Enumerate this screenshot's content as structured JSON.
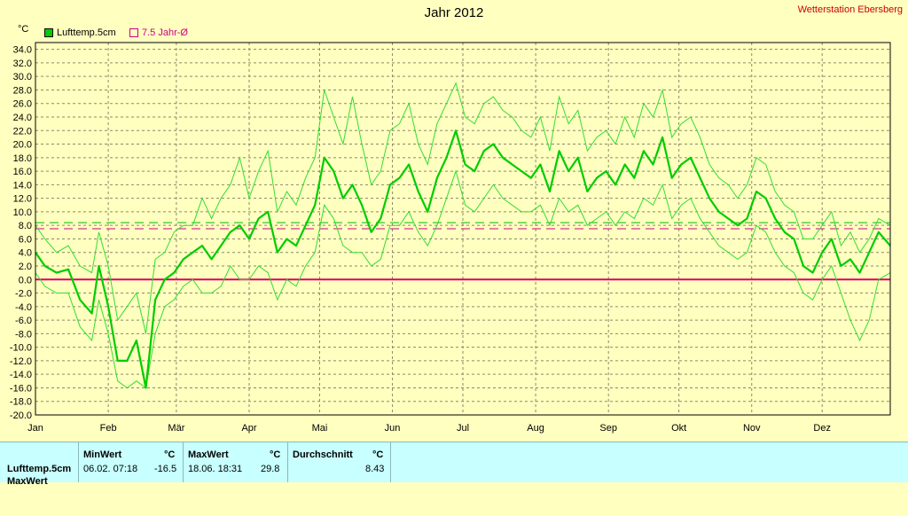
{
  "title": "Jahr 2012",
  "station": "Wetterstation Ebersberg",
  "unit": "°C",
  "legend": [
    {
      "label": "Lufttemp.5cm",
      "color": "#00cc00"
    },
    {
      "label": "7.5 Jahr-Ø",
      "color": "#cc0088"
    }
  ],
  "stats": {
    "row_label": "Lufttemp.5cm",
    "row_label_2": "MaxWert",
    "min_header": "MinWert",
    "min_unit": "°C",
    "min_date": "06.02. 07:18",
    "min_value": "-16.5",
    "max_header": "MaxWert",
    "max_unit": "°C",
    "max_date": "18.06. 18:31",
    "max_value": "29.8",
    "avg_header": "Durchschnitt",
    "avg_unit": "°C",
    "avg_value": "8.43"
  },
  "colors": {
    "background": "#ffffc0",
    "series": "#00cc00",
    "band": "#33dd33",
    "zero_line": "#dd0066",
    "avg_line": "#cc0088",
    "green_ref": "#00bb00"
  },
  "chart_data": {
    "type": "line",
    "title": "Jahr 2012",
    "ylabel": "°C",
    "ylim": [
      -20,
      35
    ],
    "x_domain": [
      1,
      365
    ],
    "grid": true,
    "legend_position": "top-left",
    "months": [
      {
        "label": "Jan",
        "day": 1
      },
      {
        "label": "Feb",
        "day": 32
      },
      {
        "label": "Mär",
        "day": 61
      },
      {
        "label": "Apr",
        "day": 92
      },
      {
        "label": "Mai",
        "day": 122
      },
      {
        "label": "Jun",
        "day": 153
      },
      {
        "label": "Jul",
        "day": 183
      },
      {
        "label": "Aug",
        "day": 214
      },
      {
        "label": "Sep",
        "day": 245
      },
      {
        "label": "Okt",
        "day": 275
      },
      {
        "label": "Nov",
        "day": 306
      },
      {
        "label": "Dez",
        "day": 336
      }
    ],
    "yticks": [
      34,
      32,
      30,
      28,
      26,
      24,
      22,
      20,
      18,
      16,
      14,
      12,
      10,
      8,
      6,
      4,
      2,
      0,
      -2,
      -4,
      -6,
      -8,
      -10,
      -12,
      -14,
      -16,
      -18,
      -20
    ],
    "reference_lines": [
      {
        "name": "7.5 Jahr-Ø",
        "y": 7.5,
        "style": "dashed"
      },
      {
        "y": 8.4,
        "style": "dashed"
      },
      {
        "y": 0,
        "style": "solid"
      }
    ],
    "series": [
      {
        "name": "Lufttemp.5cm",
        "style": "mean",
        "x": [
          1,
          5,
          10,
          15,
          20,
          25,
          28,
          32,
          36,
          40,
          44,
          48,
          52,
          56,
          60,
          64,
          68,
          72,
          76,
          80,
          84,
          88,
          92,
          96,
          100,
          104,
          108,
          112,
          116,
          120,
          124,
          128,
          132,
          136,
          140,
          144,
          148,
          152,
          156,
          160,
          164,
          168,
          172,
          176,
          180,
          184,
          188,
          192,
          196,
          200,
          204,
          208,
          212,
          216,
          220,
          224,
          228,
          232,
          236,
          240,
          244,
          248,
          252,
          256,
          260,
          264,
          268,
          272,
          276,
          280,
          284,
          288,
          292,
          296,
          300,
          304,
          308,
          312,
          316,
          320,
          324,
          328,
          332,
          336,
          340,
          344,
          348,
          352,
          356,
          360,
          365
        ],
        "y": [
          4,
          2,
          1,
          1.5,
          -3,
          -5,
          2,
          -4,
          -12,
          -12,
          -9,
          -16,
          -3,
          0,
          1,
          3,
          4,
          5,
          3,
          5,
          7,
          8,
          6,
          9,
          10,
          4,
          6,
          5,
          8,
          11,
          18,
          16,
          12,
          14,
          11,
          7,
          9,
          14,
          15,
          17,
          13,
          10,
          15,
          18,
          22,
          17,
          16,
          19,
          20,
          18,
          17,
          16,
          15,
          17,
          13,
          19,
          16,
          18,
          13,
          15,
          16,
          14,
          17,
          15,
          19,
          17,
          21,
          15,
          17,
          18,
          15,
          12,
          10,
          9,
          8,
          9,
          13,
          12,
          9,
          7,
          6,
          2,
          1,
          4,
          6,
          2,
          3,
          1,
          4,
          7,
          5
        ]
      },
      {
        "name": "max",
        "style": "band",
        "x": [
          1,
          5,
          10,
          15,
          20,
          25,
          28,
          32,
          36,
          40,
          44,
          48,
          52,
          56,
          60,
          64,
          68,
          72,
          76,
          80,
          84,
          88,
          92,
          96,
          100,
          104,
          108,
          112,
          116,
          120,
          124,
          128,
          132,
          136,
          140,
          144,
          148,
          152,
          156,
          160,
          164,
          168,
          172,
          176,
          180,
          184,
          188,
          192,
          196,
          200,
          204,
          208,
          212,
          216,
          220,
          224,
          228,
          232,
          236,
          240,
          244,
          248,
          252,
          256,
          260,
          264,
          268,
          272,
          276,
          280,
          284,
          288,
          292,
          296,
          300,
          304,
          308,
          312,
          316,
          320,
          324,
          328,
          332,
          336,
          340,
          344,
          348,
          352,
          356,
          360,
          365
        ],
        "y": [
          8,
          6,
          4,
          5,
          2,
          1,
          7,
          2,
          -6,
          -4,
          -2,
          -8,
          3,
          4,
          7,
          8,
          8,
          12,
          9,
          12,
          14,
          18,
          12,
          16,
          19,
          10,
          13,
          11,
          15,
          18,
          28,
          24,
          20,
          27,
          20,
          14,
          16,
          22,
          23,
          26,
          20,
          17,
          23,
          26,
          29,
          24,
          23,
          26,
          27,
          25,
          24,
          22,
          21,
          24,
          19,
          27,
          23,
          25,
          19,
          21,
          22,
          20,
          24,
          21,
          26,
          24,
          28,
          21,
          23,
          24,
          21,
          17,
          15,
          14,
          12,
          14,
          18,
          17,
          13,
          11,
          10,
          6,
          6,
          8,
          10,
          5,
          7,
          4,
          6,
          9,
          8
        ]
      },
      {
        "name": "min",
        "style": "band",
        "x": [
          1,
          5,
          10,
          15,
          20,
          25,
          28,
          32,
          36,
          40,
          44,
          48,
          52,
          56,
          60,
          64,
          68,
          72,
          76,
          80,
          84,
          88,
          92,
          96,
          100,
          104,
          108,
          112,
          116,
          120,
          124,
          128,
          132,
          136,
          140,
          144,
          148,
          152,
          156,
          160,
          164,
          168,
          172,
          176,
          180,
          184,
          188,
          192,
          196,
          200,
          204,
          208,
          212,
          216,
          220,
          224,
          228,
          232,
          236,
          240,
          244,
          248,
          252,
          256,
          260,
          264,
          268,
          272,
          276,
          280,
          284,
          288,
          292,
          296,
          300,
          304,
          308,
          312,
          316,
          320,
          324,
          328,
          332,
          336,
          340,
          344,
          348,
          352,
          356,
          360,
          365
        ],
        "y": [
          1,
          -1,
          -2,
          -2,
          -7,
          -9,
          -3,
          -8,
          -15,
          -16,
          -15,
          -16,
          -8,
          -4,
          -3,
          -1,
          0,
          -2,
          -2,
          -1,
          2,
          0,
          0,
          2,
          1,
          -3,
          0,
          -1,
          2,
          4,
          11,
          9,
          5,
          4,
          4,
          2,
          3,
          8,
          8,
          10,
          7,
          5,
          8,
          12,
          16,
          11,
          10,
          12,
          14,
          12,
          11,
          10,
          10,
          11,
          8,
          12,
          10,
          11,
          8,
          9,
          10,
          8,
          10,
          9,
          12,
          11,
          14,
          9,
          11,
          12,
          9,
          7,
          5,
          4,
          3,
          4,
          8,
          7,
          4,
          2,
          1,
          -2,
          -3,
          0,
          2,
          -2,
          -6,
          -9,
          -6,
          0,
          1
        ]
      }
    ]
  }
}
